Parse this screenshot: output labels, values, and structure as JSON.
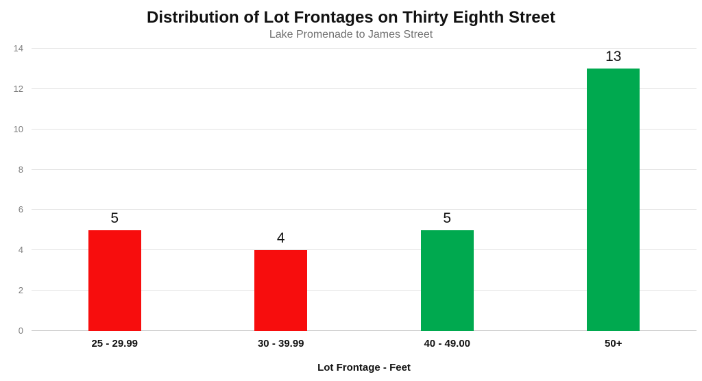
{
  "chart_data": {
    "type": "bar",
    "title": "Distribution of Lot Frontages on Thirty Eighth Street",
    "subtitle": "Lake Promenade to James Street",
    "xlabel": "Lot Frontage - Feet",
    "ylabel": "",
    "categories": [
      "25 - 29.99",
      "30 - 39.99",
      "40 - 49.00",
      "50+"
    ],
    "values": [
      5,
      4,
      5,
      13
    ],
    "bar_colors": [
      "#f70d0d",
      "#f70d0d",
      "#00a94f",
      "#00a94f"
    ],
    "ylim": [
      0,
      14
    ],
    "yticks": [
      0,
      2,
      4,
      6,
      8,
      10,
      12,
      14
    ],
    "grid": true,
    "legend": false,
    "colors": {
      "red_bar": "#f70d0d",
      "green_bar": "#00a94f",
      "gridline": "#e3e3e3",
      "baseline": "#c9c9c9",
      "tick_label": "#7d7d7d",
      "title": "#111111",
      "subtitle": "#6f6f6f",
      "background": "#ffffff"
    }
  }
}
